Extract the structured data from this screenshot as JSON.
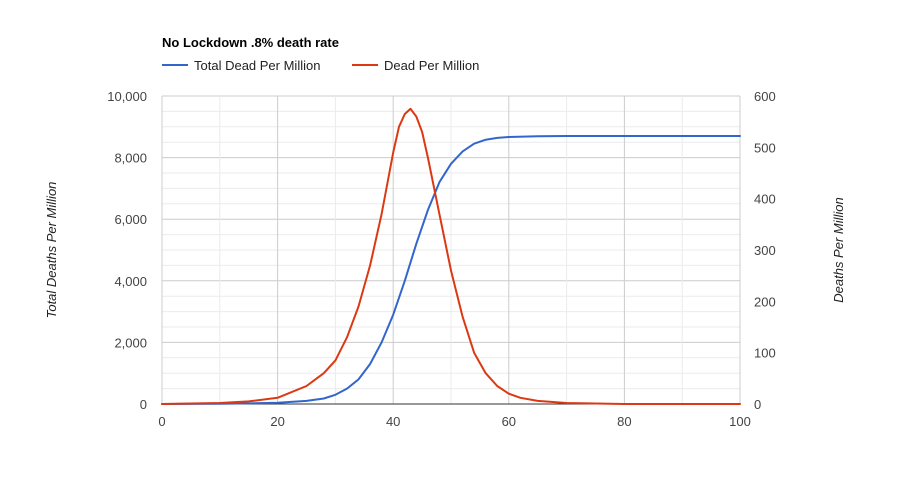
{
  "chart_data": {
    "type": "line",
    "title": "No Lockdown .8% death rate",
    "xlim": [
      0,
      100
    ],
    "x_ticks": [
      "0",
      "20",
      "40",
      "60",
      "80",
      "100"
    ],
    "y_left": {
      "label": "Total Deaths Per Million",
      "lim": [
        0,
        10000
      ],
      "ticks": [
        "0",
        "2,000",
        "4,000",
        "6,000",
        "8,000",
        "10,000"
      ]
    },
    "y_right": {
      "label": "Deaths Per Million",
      "lim": [
        0,
        600
      ],
      "ticks": [
        "0",
        "100",
        "200",
        "300",
        "400",
        "500",
        "600"
      ]
    },
    "grid": true,
    "legend_position": "top-left",
    "series": [
      {
        "name": "Total Dead Per Million",
        "axis": "left",
        "color": "#3366cc",
        "points": [
          [
            0,
            0
          ],
          [
            10,
            5
          ],
          [
            20,
            40
          ],
          [
            25,
            100
          ],
          [
            28,
            180
          ],
          [
            30,
            300
          ],
          [
            32,
            500
          ],
          [
            34,
            800
          ],
          [
            36,
            1300
          ],
          [
            38,
            2000
          ],
          [
            40,
            2900
          ],
          [
            42,
            4000
          ],
          [
            44,
            5200
          ],
          [
            46,
            6300
          ],
          [
            48,
            7200
          ],
          [
            50,
            7800
          ],
          [
            52,
            8200
          ],
          [
            54,
            8450
          ],
          [
            56,
            8580
          ],
          [
            58,
            8640
          ],
          [
            60,
            8670
          ],
          [
            65,
            8690
          ],
          [
            70,
            8700
          ],
          [
            80,
            8700
          ],
          [
            100,
            8700
          ]
        ]
      },
      {
        "name": "Dead Per Million",
        "axis": "right",
        "color": "#dc3912",
        "points": [
          [
            0,
            0
          ],
          [
            10,
            2
          ],
          [
            15,
            5
          ],
          [
            20,
            12
          ],
          [
            25,
            35
          ],
          [
            28,
            60
          ],
          [
            30,
            85
          ],
          [
            32,
            130
          ],
          [
            34,
            190
          ],
          [
            36,
            270
          ],
          [
            38,
            370
          ],
          [
            40,
            490
          ],
          [
            41,
            540
          ],
          [
            42,
            565
          ],
          [
            43,
            575
          ],
          [
            44,
            560
          ],
          [
            45,
            530
          ],
          [
            46,
            480
          ],
          [
            48,
            370
          ],
          [
            50,
            260
          ],
          [
            52,
            170
          ],
          [
            54,
            100
          ],
          [
            56,
            60
          ],
          [
            58,
            35
          ],
          [
            60,
            20
          ],
          [
            62,
            12
          ],
          [
            65,
            6
          ],
          [
            70,
            2
          ],
          [
            80,
            0
          ],
          [
            100,
            0
          ]
        ]
      }
    ]
  }
}
